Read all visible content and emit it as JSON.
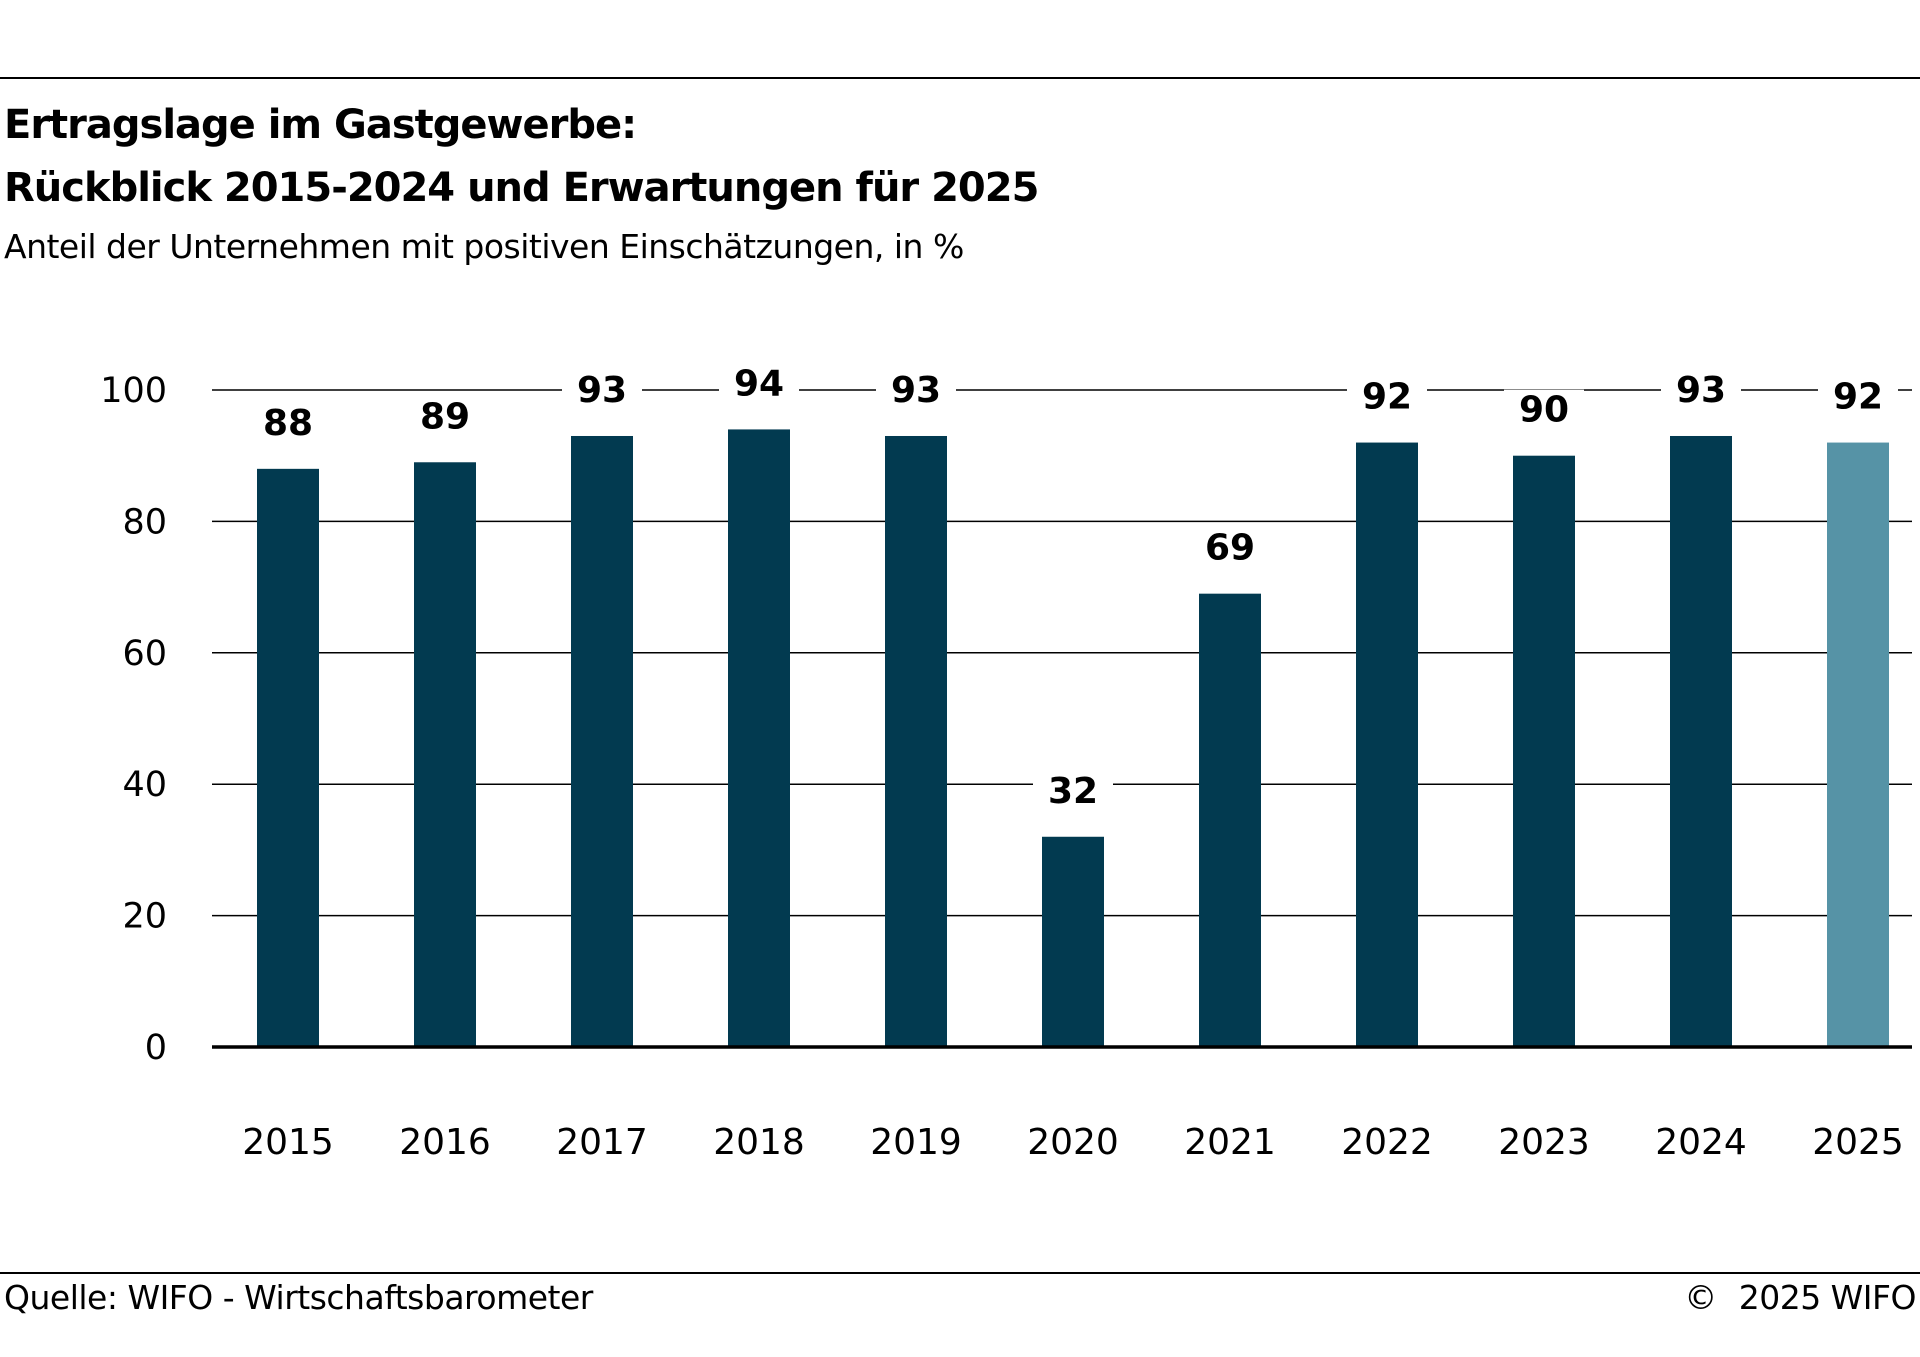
{
  "header": {
    "title_line1": "Ertragslage im Gastgewerbe:",
    "title_line2": "Rückblick 2015-2024 und Erwartungen für 2025",
    "subtitle": "Anteil der Unternehmen mit positiven Einschätzungen, in %"
  },
  "chart_data": {
    "type": "bar",
    "title": "Ertragslage im Gastgewerbe: Rückblick 2015-2024 und Erwartungen für 2025",
    "subtitle": "Anteil der Unternehmen mit positiven Einschätzungen, in %",
    "xlabel": "",
    "ylabel": "",
    "categories": [
      "2015",
      "2016",
      "2017",
      "2018",
      "2019",
      "2020",
      "2021",
      "2022",
      "2023",
      "2024",
      "2025"
    ],
    "values": [
      88,
      89,
      93,
      94,
      93,
      32,
      69,
      92,
      90,
      93,
      92
    ],
    "data_labels": [
      "88",
      "89",
      "93",
      "94",
      "93",
      "32",
      "69",
      "92",
      "90",
      "93",
      "92"
    ],
    "ylim": [
      0,
      100
    ],
    "yticks": [
      0,
      20,
      40,
      60,
      80,
      100
    ],
    "ytick_labels": [
      "0",
      "20",
      "40",
      "60",
      "80",
      "100"
    ],
    "grid": true,
    "legend": "none",
    "colors": {
      "actual": "#023a50",
      "forecast": "#5693a6",
      "grid": "#000000"
    },
    "forecast_categories": [
      "2025"
    ]
  },
  "footer": {
    "source": "Quelle: WIFO - Wirtschaftsbarometer",
    "copyright_symbol": "©",
    "copyright_text": "2025 WIFO"
  }
}
